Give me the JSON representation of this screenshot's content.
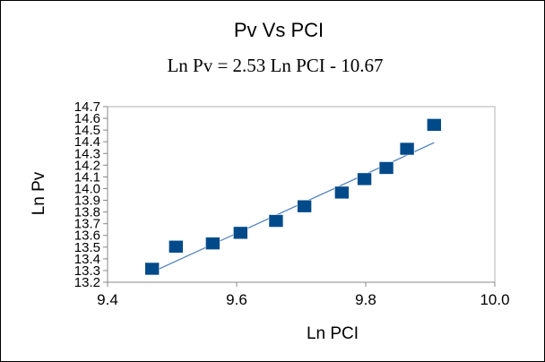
{
  "chart_data": {
    "type": "scatter",
    "title": "Pv Vs PCI",
    "subtitle": "Ln Pv = 2.53 Ln PCI - 10.67",
    "xlabel": "Ln PCI",
    "ylabel": "Ln Pv",
    "xlim": [
      9.4,
      10.0
    ],
    "ylim": [
      13.2,
      14.7
    ],
    "xticks": [
      "9.4",
      "9.6",
      "9.8",
      "10.0"
    ],
    "yticks": [
      "13.2",
      "13.3",
      "13.4",
      "13.5",
      "13.6",
      "13.7",
      "13.8",
      "13.9",
      "14.0",
      "14.1",
      "14.2",
      "14.3",
      "14.4",
      "14.5",
      "14.6",
      "14.7"
    ],
    "grid": false,
    "series": [
      {
        "name": "Ln Pv",
        "marker": "square",
        "color": "#004a8a",
        "x": [
          9.469,
          9.506,
          9.563,
          9.606,
          9.661,
          9.705,
          9.763,
          9.798,
          9.832,
          9.864,
          9.906
        ],
        "y": [
          13.315,
          13.504,
          13.532,
          13.622,
          13.724,
          13.849,
          13.966,
          14.081,
          14.176,
          14.34,
          14.544
        ]
      }
    ],
    "trendline": {
      "slope": 2.53,
      "intercept": -10.67,
      "x_range": [
        9.469,
        9.906
      ],
      "color": "#4a7ebb"
    }
  }
}
